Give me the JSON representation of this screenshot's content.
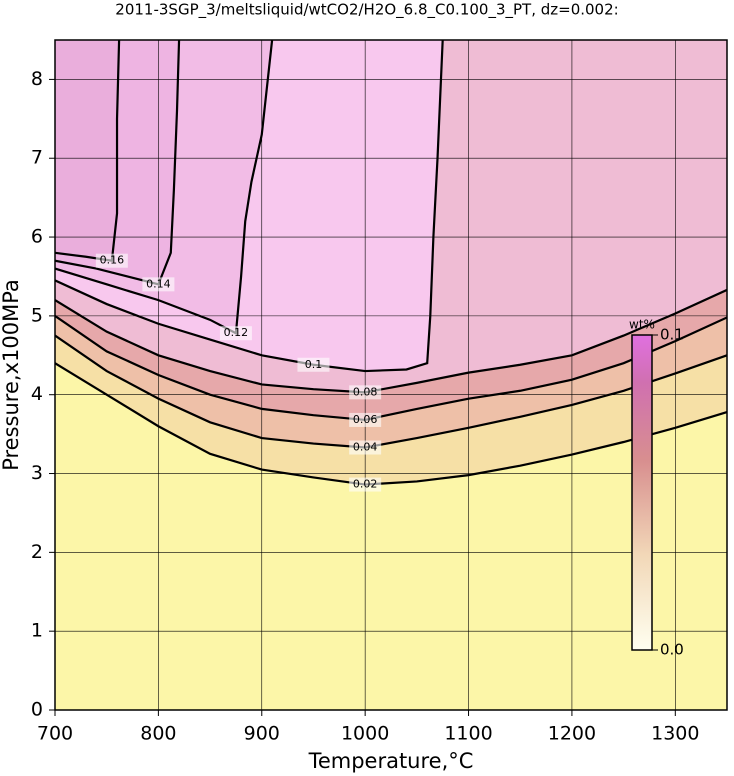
{
  "chart_data": {
    "type": "contour",
    "title": "2011-3SGP_3/meltsliquid/wtCO2/H2O_6.8_C0.100_3_PT, dz=0.002:",
    "x_label": "Temperature,°C",
    "y_label": "Pressure,x100MPa",
    "xlim": [
      700,
      1350
    ],
    "ylim": [
      0,
      8.5
    ],
    "xticks": [
      700,
      800,
      900,
      1000,
      1100,
      1200,
      1300
    ],
    "yticks": [
      0,
      1,
      2,
      3,
      4,
      5,
      6,
      7,
      8
    ],
    "grid": true,
    "base_color": "#fcf6a8",
    "contours": [
      {
        "level": 0.02,
        "color": "#f6e0a6",
        "x": [
          700,
          750,
          800,
          850,
          900,
          950,
          1000,
          1050,
          1100,
          1150,
          1200,
          1250,
          1300,
          1350
        ],
        "y": [
          4.4,
          4.0,
          3.6,
          3.25,
          3.05,
          2.95,
          2.86,
          2.9,
          2.98,
          3.1,
          3.24,
          3.4,
          3.58,
          3.78
        ]
      },
      {
        "level": 0.04,
        "color": "#eec0a8",
        "x": [
          700,
          750,
          800,
          850,
          900,
          950,
          1000,
          1050,
          1100,
          1150,
          1200,
          1250,
          1300,
          1350
        ],
        "y": [
          4.75,
          4.3,
          3.95,
          3.65,
          3.45,
          3.38,
          3.33,
          3.45,
          3.58,
          3.72,
          3.87,
          4.05,
          4.27,
          4.5
        ]
      },
      {
        "level": 0.06,
        "color": "#e6a8aa",
        "x": [
          700,
          750,
          800,
          850,
          900,
          950,
          1000,
          1050,
          1100,
          1150,
          1200,
          1250,
          1300,
          1350
        ],
        "y": [
          5.0,
          4.55,
          4.25,
          4.0,
          3.82,
          3.74,
          3.68,
          3.82,
          3.95,
          4.05,
          4.19,
          4.4,
          4.68,
          4.98
        ]
      },
      {
        "level": 0.08,
        "color": "#efbcd4",
        "x": [
          700,
          750,
          800,
          850,
          900,
          950,
          1000,
          1050,
          1100,
          1150,
          1200,
          1250,
          1300,
          1350
        ],
        "y": [
          5.2,
          4.8,
          4.5,
          4.3,
          4.13,
          4.07,
          4.03,
          4.15,
          4.28,
          4.38,
          4.5,
          4.75,
          5.03,
          5.33
        ]
      },
      {
        "level": 0.1,
        "color": "#f8c8ee",
        "x": [
          700,
          750,
          800,
          850,
          900,
          950,
          1000,
          1040,
          1060,
          1063,
          1066,
          1070,
          1075
        ],
        "y": [
          5.45,
          5.15,
          4.9,
          4.7,
          4.5,
          4.38,
          4.3,
          4.32,
          4.4,
          5.0,
          6.0,
          7.0,
          8.5
        ]
      },
      {
        "level": 0.12,
        "color": "#f2bce6",
        "x": [
          700,
          750,
          800,
          850,
          875,
          880,
          884,
          890,
          900,
          910
        ],
        "y": [
          5.6,
          5.4,
          5.2,
          4.95,
          4.78,
          5.5,
          6.2,
          6.7,
          7.3,
          8.5
        ]
      },
      {
        "level": 0.14,
        "color": "#eeb4e2",
        "x": [
          700,
          740,
          770,
          800,
          812,
          815,
          818,
          820
        ],
        "y": [
          5.7,
          5.6,
          5.5,
          5.4,
          5.8,
          6.6,
          7.6,
          8.5
        ]
      },
      {
        "level": 0.16,
        "color": "#eaaedc",
        "x": [
          700,
          730,
          755,
          760,
          760,
          762
        ],
        "y": [
          5.8,
          5.75,
          5.7,
          6.3,
          7.5,
          8.5
        ]
      }
    ],
    "colorbar": {
      "label": "wt%",
      "ticks": [
        {
          "value": 0,
          "label": "0.0"
        },
        0.1
      ],
      "lim": [
        0,
        0.1
      ]
    }
  }
}
